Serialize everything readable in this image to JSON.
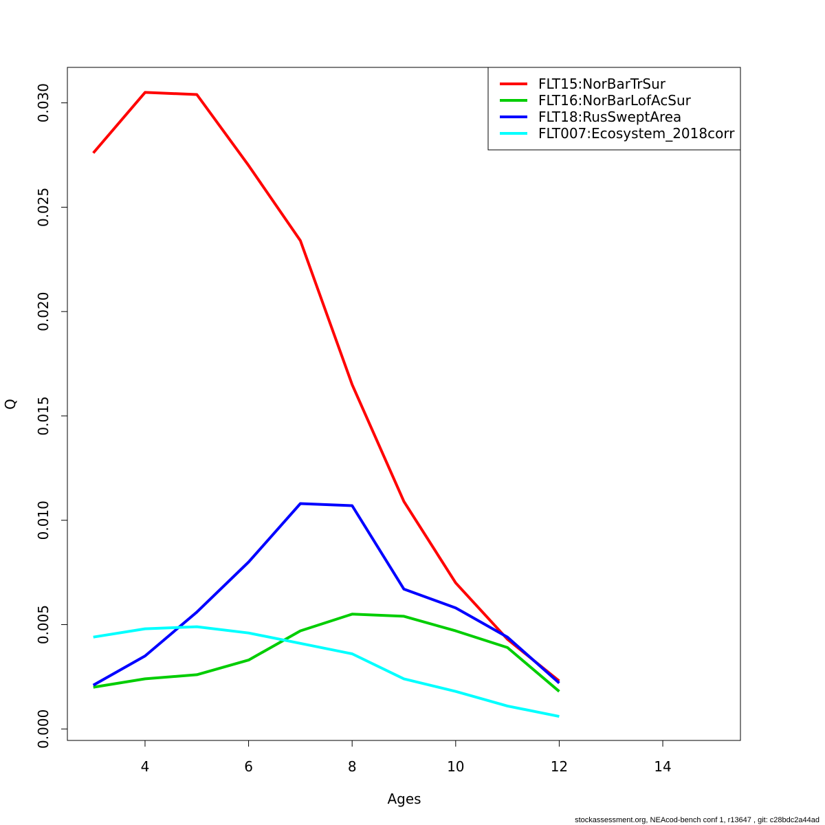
{
  "chart_data": {
    "type": "line",
    "xlabel": "Ages",
    "ylabel": "Q",
    "xlim": [
      2.5,
      15.5
    ],
    "ylim": [
      -0.00055,
      0.0317
    ],
    "xticks": [
      "4",
      "6",
      "8",
      "10",
      "12",
      "14"
    ],
    "yticks": [
      "0.000",
      "0.005",
      "0.010",
      "0.015",
      "0.020",
      "0.025",
      "0.030"
    ],
    "x": [
      3,
      4,
      5,
      6,
      7,
      8,
      9,
      10,
      11,
      12
    ],
    "grid": false,
    "legend_position": "top-right",
    "series": [
      {
        "name": "FLT15:NorBarTrSur",
        "color": "#ff0000",
        "values": [
          0.0276,
          0.0305,
          0.0304,
          0.027,
          0.0234,
          0.0165,
          0.0109,
          0.007,
          0.0043,
          0.0023
        ]
      },
      {
        "name": "FLT16:NorBarLofAcSur",
        "color": "#00cd00",
        "values": [
          0.002,
          0.0024,
          0.0026,
          0.0033,
          0.0047,
          0.0055,
          0.0054,
          0.0047,
          0.0039,
          0.0018
        ]
      },
      {
        "name": "FLT18:RusSweptArea",
        "color": "#0000ff",
        "values": [
          0.0021,
          0.0035,
          0.0056,
          0.008,
          0.0108,
          0.0107,
          0.0067,
          0.0058,
          0.0044,
          0.0022
        ]
      },
      {
        "name": "FLT007:Ecosystem_2018corr",
        "color": "#00ffff",
        "values": [
          0.0044,
          0.0048,
          0.0049,
          0.0046,
          0.0041,
          0.0036,
          0.0024,
          0.0018,
          0.0011,
          0.0006
        ]
      }
    ]
  },
  "footer": "stockassessment.org, NEAcod-bench  conf  1, r13647 , git: c28bdc2a44ad"
}
